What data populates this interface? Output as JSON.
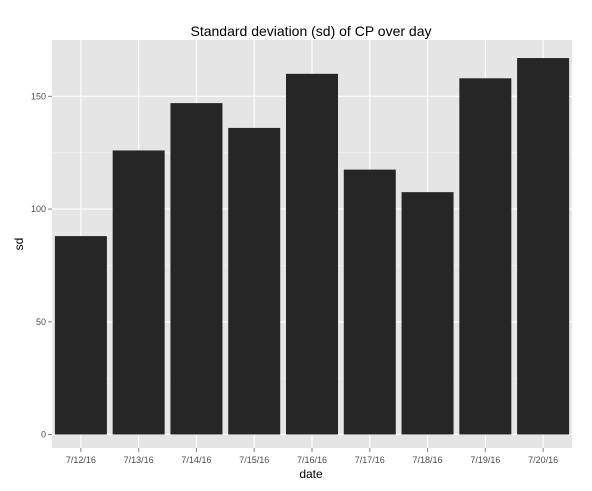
{
  "chart_data": {
    "type": "bar",
    "title": "Standard deviation (sd) of CP over day",
    "xlabel": "date",
    "ylabel": "sd",
    "categories": [
      "7/12/16",
      "7/13/16",
      "7/14/16",
      "7/15/16",
      "7/16/16",
      "7/17/16",
      "7/18/16",
      "7/19/16",
      "7/20/16"
    ],
    "values": [
      88,
      126,
      147,
      136,
      160,
      117.5,
      107.5,
      158,
      167
    ],
    "ylim": [
      -6,
      175
    ],
    "yticks": [
      0,
      50,
      100,
      150
    ],
    "grid": true,
    "legend": "none",
    "colors": {
      "bar": "#262626",
      "panel": "#e5e5e5",
      "grid_major": "#ffffff",
      "grid_minor": "#f2f2f2",
      "tick_label": "#4d4d4d",
      "tick": "#7f7f7f"
    }
  }
}
